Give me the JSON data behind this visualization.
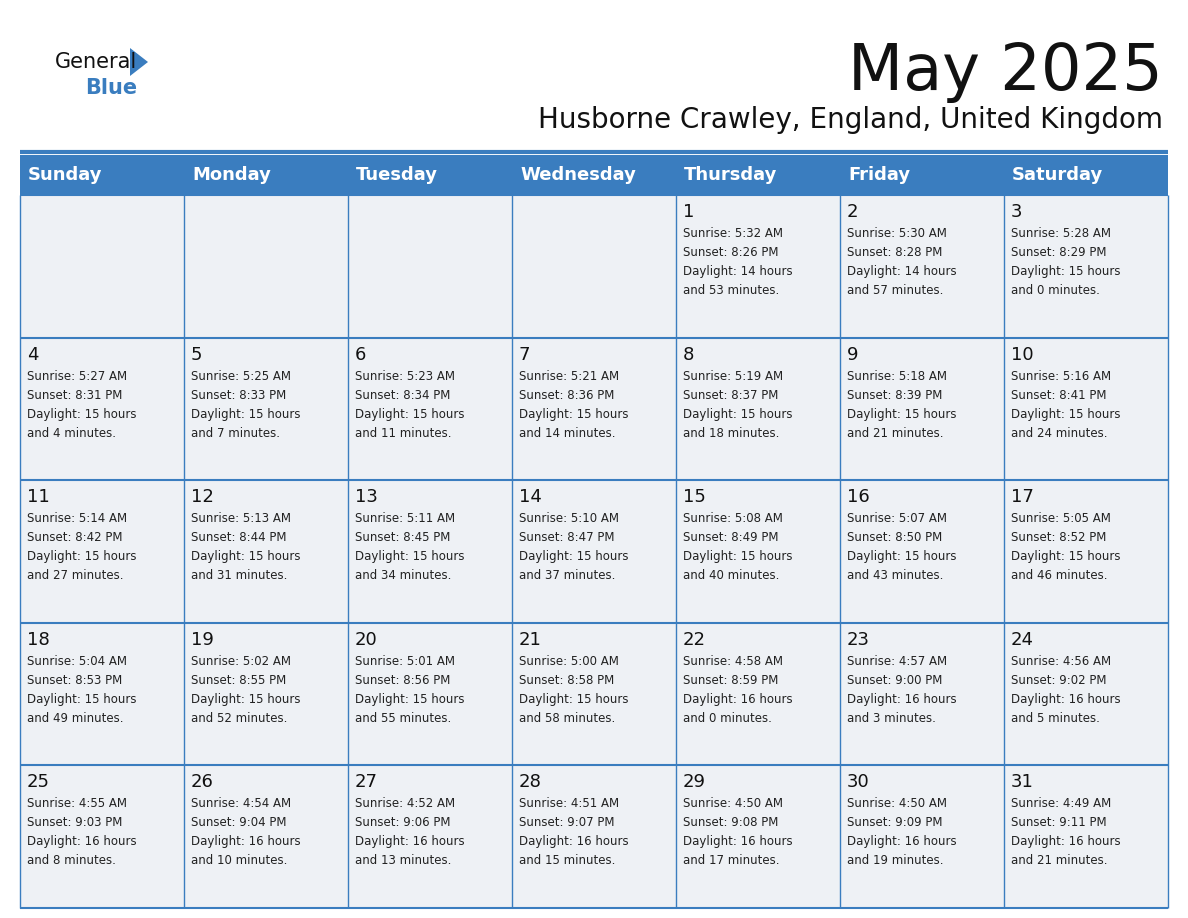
{
  "title": "May 2025",
  "subtitle": "Husborne Crawley, England, United Kingdom",
  "header_bg_color": "#3a7dbf",
  "header_text_color": "#ffffff",
  "cell_bg_color": "#eef1f5",
  "grid_color": "#3a7dbf",
  "days_of_week": [
    "Sunday",
    "Monday",
    "Tuesday",
    "Wednesday",
    "Thursday",
    "Friday",
    "Saturday"
  ],
  "weeks": [
    [
      {
        "day": "",
        "info": ""
      },
      {
        "day": "",
        "info": ""
      },
      {
        "day": "",
        "info": ""
      },
      {
        "day": "",
        "info": ""
      },
      {
        "day": "1",
        "info": "Sunrise: 5:32 AM\nSunset: 8:26 PM\nDaylight: 14 hours\nand 53 minutes."
      },
      {
        "day": "2",
        "info": "Sunrise: 5:30 AM\nSunset: 8:28 PM\nDaylight: 14 hours\nand 57 minutes."
      },
      {
        "day": "3",
        "info": "Sunrise: 5:28 AM\nSunset: 8:29 PM\nDaylight: 15 hours\nand 0 minutes."
      }
    ],
    [
      {
        "day": "4",
        "info": "Sunrise: 5:27 AM\nSunset: 8:31 PM\nDaylight: 15 hours\nand 4 minutes."
      },
      {
        "day": "5",
        "info": "Sunrise: 5:25 AM\nSunset: 8:33 PM\nDaylight: 15 hours\nand 7 minutes."
      },
      {
        "day": "6",
        "info": "Sunrise: 5:23 AM\nSunset: 8:34 PM\nDaylight: 15 hours\nand 11 minutes."
      },
      {
        "day": "7",
        "info": "Sunrise: 5:21 AM\nSunset: 8:36 PM\nDaylight: 15 hours\nand 14 minutes."
      },
      {
        "day": "8",
        "info": "Sunrise: 5:19 AM\nSunset: 8:37 PM\nDaylight: 15 hours\nand 18 minutes."
      },
      {
        "day": "9",
        "info": "Sunrise: 5:18 AM\nSunset: 8:39 PM\nDaylight: 15 hours\nand 21 minutes."
      },
      {
        "day": "10",
        "info": "Sunrise: 5:16 AM\nSunset: 8:41 PM\nDaylight: 15 hours\nand 24 minutes."
      }
    ],
    [
      {
        "day": "11",
        "info": "Sunrise: 5:14 AM\nSunset: 8:42 PM\nDaylight: 15 hours\nand 27 minutes."
      },
      {
        "day": "12",
        "info": "Sunrise: 5:13 AM\nSunset: 8:44 PM\nDaylight: 15 hours\nand 31 minutes."
      },
      {
        "day": "13",
        "info": "Sunrise: 5:11 AM\nSunset: 8:45 PM\nDaylight: 15 hours\nand 34 minutes."
      },
      {
        "day": "14",
        "info": "Sunrise: 5:10 AM\nSunset: 8:47 PM\nDaylight: 15 hours\nand 37 minutes."
      },
      {
        "day": "15",
        "info": "Sunrise: 5:08 AM\nSunset: 8:49 PM\nDaylight: 15 hours\nand 40 minutes."
      },
      {
        "day": "16",
        "info": "Sunrise: 5:07 AM\nSunset: 8:50 PM\nDaylight: 15 hours\nand 43 minutes."
      },
      {
        "day": "17",
        "info": "Sunrise: 5:05 AM\nSunset: 8:52 PM\nDaylight: 15 hours\nand 46 minutes."
      }
    ],
    [
      {
        "day": "18",
        "info": "Sunrise: 5:04 AM\nSunset: 8:53 PM\nDaylight: 15 hours\nand 49 minutes."
      },
      {
        "day": "19",
        "info": "Sunrise: 5:02 AM\nSunset: 8:55 PM\nDaylight: 15 hours\nand 52 minutes."
      },
      {
        "day": "20",
        "info": "Sunrise: 5:01 AM\nSunset: 8:56 PM\nDaylight: 15 hours\nand 55 minutes."
      },
      {
        "day": "21",
        "info": "Sunrise: 5:00 AM\nSunset: 8:58 PM\nDaylight: 15 hours\nand 58 minutes."
      },
      {
        "day": "22",
        "info": "Sunrise: 4:58 AM\nSunset: 8:59 PM\nDaylight: 16 hours\nand 0 minutes."
      },
      {
        "day": "23",
        "info": "Sunrise: 4:57 AM\nSunset: 9:00 PM\nDaylight: 16 hours\nand 3 minutes."
      },
      {
        "day": "24",
        "info": "Sunrise: 4:56 AM\nSunset: 9:02 PM\nDaylight: 16 hours\nand 5 minutes."
      }
    ],
    [
      {
        "day": "25",
        "info": "Sunrise: 4:55 AM\nSunset: 9:03 PM\nDaylight: 16 hours\nand 8 minutes."
      },
      {
        "day": "26",
        "info": "Sunrise: 4:54 AM\nSunset: 9:04 PM\nDaylight: 16 hours\nand 10 minutes."
      },
      {
        "day": "27",
        "info": "Sunrise: 4:52 AM\nSunset: 9:06 PM\nDaylight: 16 hours\nand 13 minutes."
      },
      {
        "day": "28",
        "info": "Sunrise: 4:51 AM\nSunset: 9:07 PM\nDaylight: 16 hours\nand 15 minutes."
      },
      {
        "day": "29",
        "info": "Sunrise: 4:50 AM\nSunset: 9:08 PM\nDaylight: 16 hours\nand 17 minutes."
      },
      {
        "day": "30",
        "info": "Sunrise: 4:50 AM\nSunset: 9:09 PM\nDaylight: 16 hours\nand 19 minutes."
      },
      {
        "day": "31",
        "info": "Sunrise: 4:49 AM\nSunset: 9:11 PM\nDaylight: 16 hours\nand 21 minutes."
      }
    ]
  ]
}
